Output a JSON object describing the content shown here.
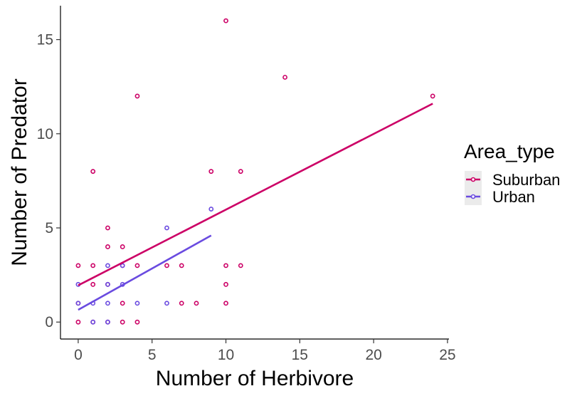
{
  "chart_data": {
    "type": "scatter",
    "xlabel": "Number of Herbivore",
    "ylabel": "Number of Predator",
    "xlim": [
      -1.2,
      25.1
    ],
    "ylim": [
      -0.9,
      16.8
    ],
    "x_ticks": [
      0,
      5,
      10,
      15,
      20,
      25
    ],
    "y_ticks": [
      0,
      5,
      10,
      15
    ],
    "grid": false,
    "legend": {
      "title": "Area_type",
      "placement": "right"
    },
    "series": [
      {
        "name": "Suburban",
        "color": "#cc0066",
        "points": [
          [
            0,
            0
          ],
          [
            1,
            0
          ],
          [
            2,
            0
          ],
          [
            3,
            0
          ],
          [
            4,
            0
          ],
          [
            0,
            1
          ],
          [
            3,
            1
          ],
          [
            7,
            1
          ],
          [
            8,
            1
          ],
          [
            10,
            1
          ],
          [
            1,
            2
          ],
          [
            2,
            2
          ],
          [
            10,
            2
          ],
          [
            0,
            3
          ],
          [
            1,
            3
          ],
          [
            3,
            3
          ],
          [
            4,
            3
          ],
          [
            6,
            3
          ],
          [
            7,
            3
          ],
          [
            10,
            3
          ],
          [
            11,
            3
          ],
          [
            2,
            4
          ],
          [
            3,
            4
          ],
          [
            2,
            5
          ],
          [
            1,
            8
          ],
          [
            9,
            8
          ],
          [
            11,
            8
          ],
          [
            4,
            12
          ],
          [
            24,
            12
          ],
          [
            14,
            13
          ],
          [
            10,
            16
          ]
        ],
        "trend": {
          "x": [
            0,
            24
          ],
          "y": [
            1.95,
            11.6
          ]
        }
      },
      {
        "name": "Urban",
        "color": "#6a4be0",
        "points": [
          [
            1,
            0
          ],
          [
            2,
            0
          ],
          [
            0,
            1
          ],
          [
            1,
            1
          ],
          [
            2,
            1
          ],
          [
            4,
            1
          ],
          [
            6,
            1
          ],
          [
            0,
            2
          ],
          [
            2,
            2
          ],
          [
            3,
            2
          ],
          [
            2,
            3
          ],
          [
            3,
            3
          ],
          [
            6,
            5
          ],
          [
            9,
            6
          ]
        ],
        "trend": {
          "x": [
            0,
            9
          ],
          "y": [
            0.65,
            4.6
          ]
        }
      }
    ]
  }
}
